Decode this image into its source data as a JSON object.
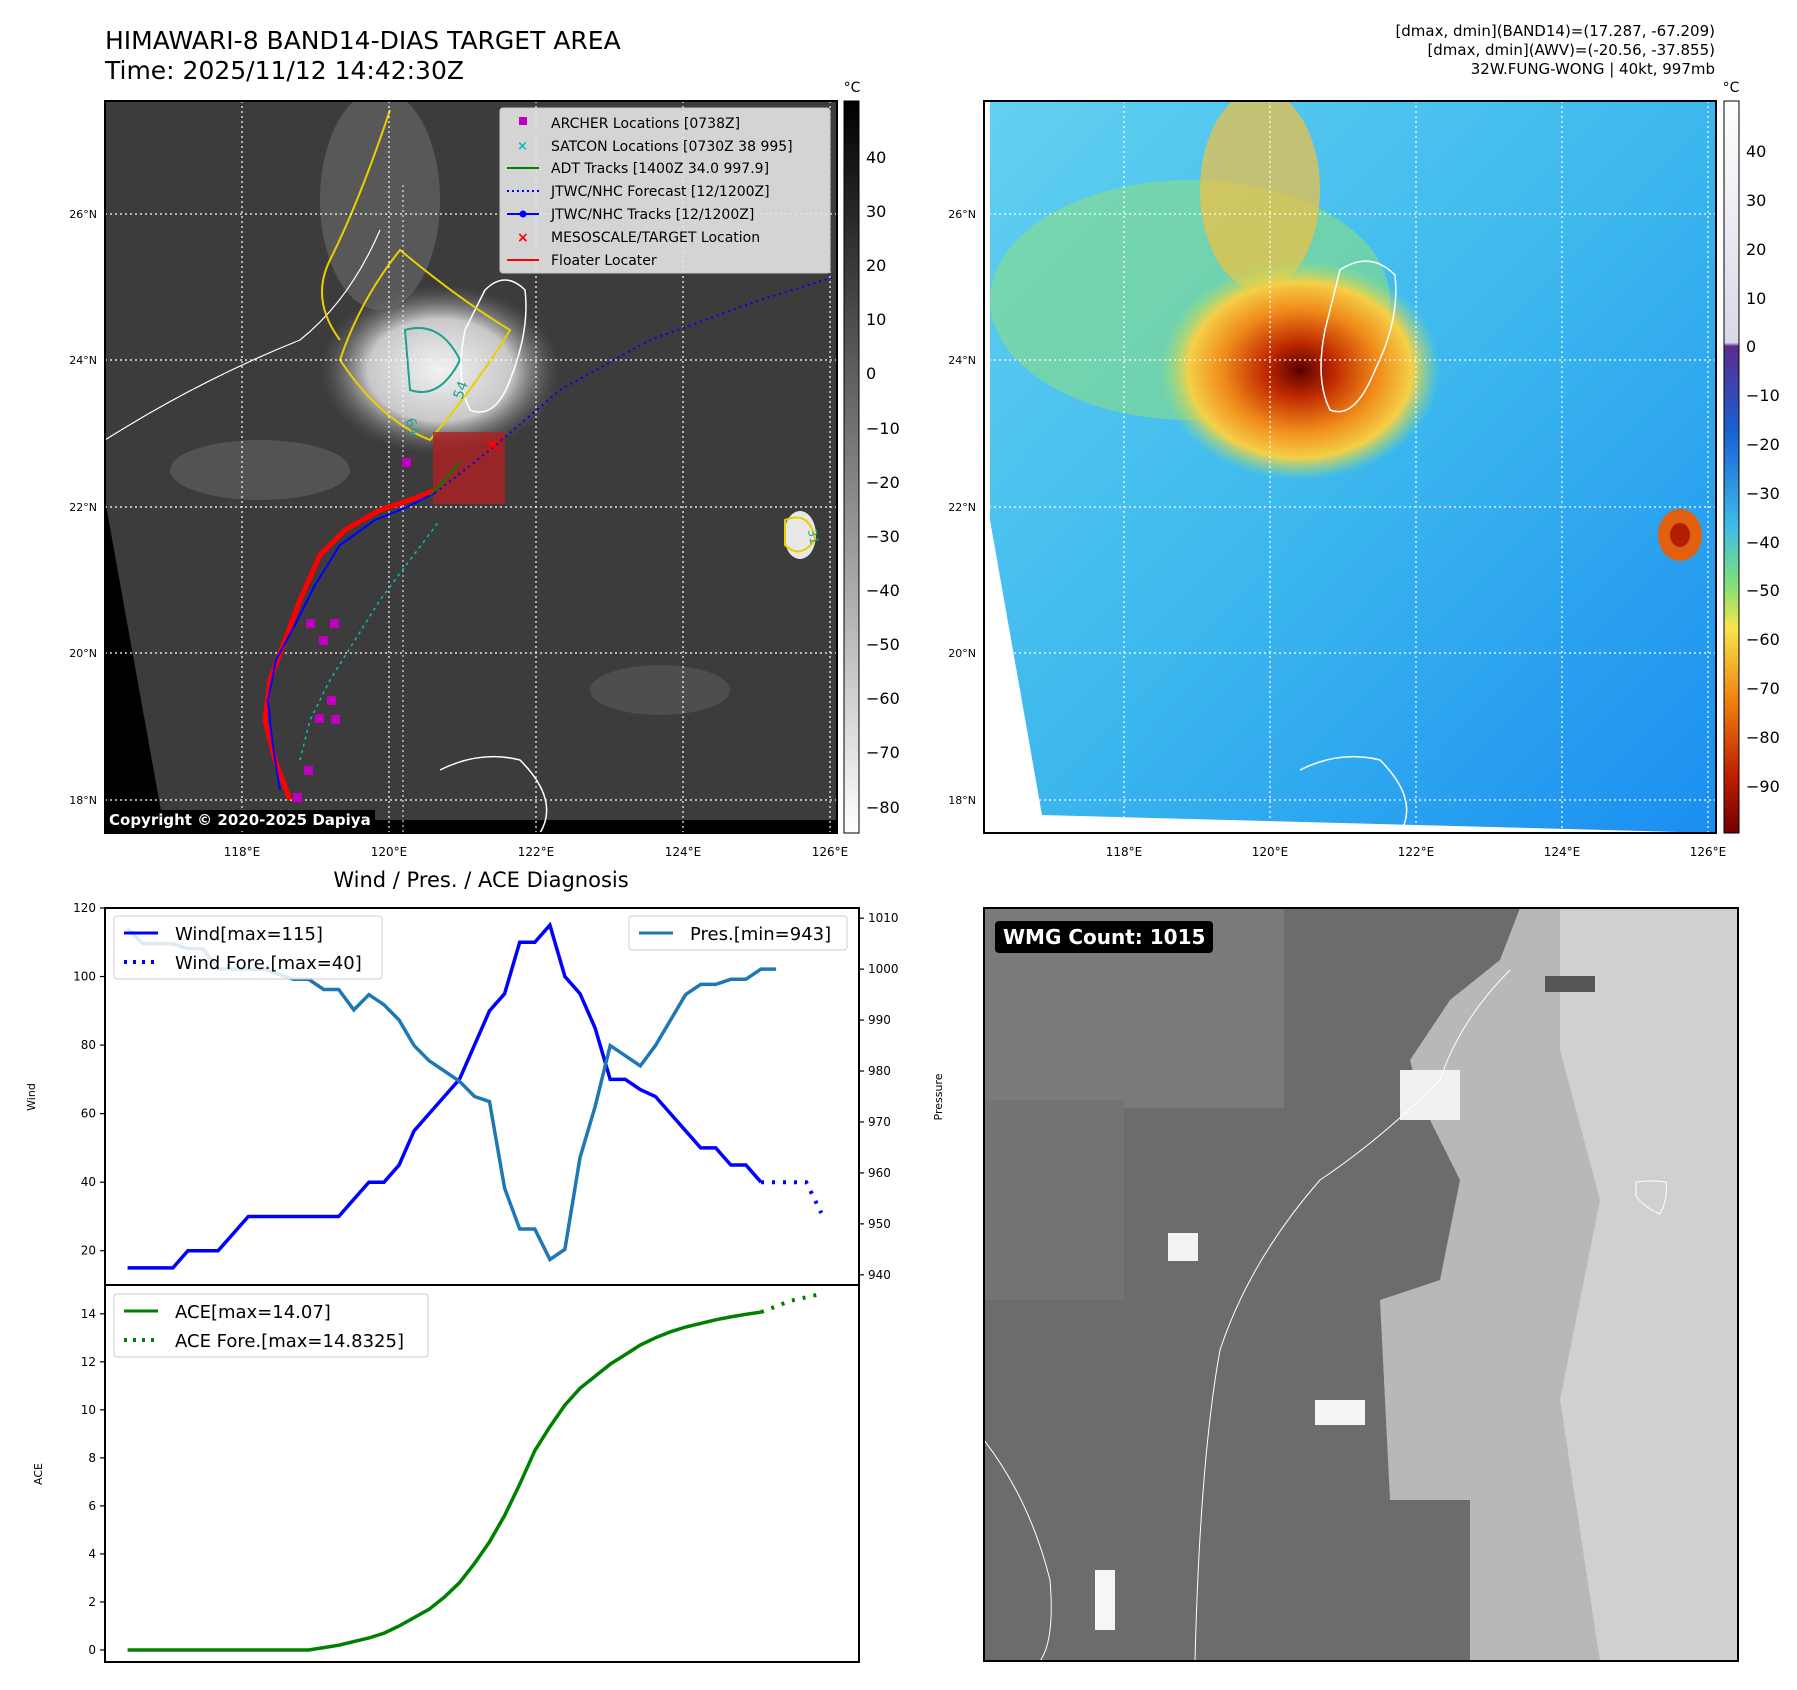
{
  "header": {
    "title_line1": "HIMAWARI-8 BAND14-DIAS TARGET AREA",
    "title_line2": "Time: 2025/11/12 14:42:30Z",
    "info_line1": "[dmax, dmin](BAND14)=(17.287, -67.209)",
    "info_line2": "[dmax, dmin](AWV)=(-20.56, -37.855)",
    "info_line3": "32W.FUNG-WONG | 40kt, 997mb"
  },
  "map": {
    "lat_labels": [
      "26°N",
      "24°N",
      "22°N",
      "20°N",
      "18°N"
    ],
    "lon_labels": [
      "118°E",
      "120°E",
      "122°E",
      "124°E",
      "126°E"
    ],
    "copyright": "Copyright © 2020-2025 Dapiya",
    "legend": [
      {
        "label": "ARCHER Locations [0738Z]",
        "color": "#c000c0",
        "marker": "square"
      },
      {
        "label": "SATCON Locations [0730Z 38 995]",
        "color": "#00c0c0",
        "marker": "x"
      },
      {
        "label": "ADT Tracks [1400Z 34.0 997.9]",
        "color": "#008000",
        "marker": "line"
      },
      {
        "label": "JTWC/NHC Forecast [12/1200Z]",
        "color": "#0000ff",
        "marker": "dotted"
      },
      {
        "label": "JTWC/NHC Tracks [12/1200Z]",
        "color": "#0000ff",
        "marker": "line-dot"
      },
      {
        "label": "MESOSCALE/TARGET Location",
        "color": "#ff0000",
        "marker": "x"
      },
      {
        "label": "Floater Locater",
        "color": "#ff0000",
        "marker": "line"
      }
    ],
    "contour_labels": [
      "54",
      "64",
      "31"
    ],
    "colorbar_gray": {
      "unit": "°C",
      "ticks": [
        "40",
        "30",
        "20",
        "10",
        "0",
        "−10",
        "−20",
        "−30",
        "−40",
        "−50",
        "−60",
        "−70",
        "−80"
      ]
    },
    "colorbar_color": {
      "unit": "°C",
      "ticks": [
        "40",
        "30",
        "20",
        "10",
        "0",
        "−10",
        "−20",
        "−30",
        "−40",
        "−50",
        "−60",
        "−70",
        "−80",
        "−90"
      ]
    },
    "colors": {
      "land": "#ffffff",
      "background": "#3c3c3c",
      "target_box": "#b02020"
    }
  },
  "diag": {
    "title": "Wind / Pres. / ACE Diagnosis",
    "wind_ylabel": "Wind",
    "pres_ylabel": "Pressure",
    "ace_ylabel": "ACE",
    "legend_wind": "Wind[max=115]",
    "legend_wind_fore": "Wind Fore.[max=40]",
    "legend_pres": "Pres.[min=943]",
    "legend_ace": "ACE[max=14.07]",
    "legend_ace_fore": "ACE Fore.[max=14.8325]",
    "wind_ticks": [
      "120",
      "100",
      "80",
      "60",
      "40",
      "20"
    ],
    "pres_ticks": [
      "1010",
      "1000",
      "990",
      "980",
      "970",
      "960",
      "950",
      "940"
    ],
    "ace_ticks": [
      "14",
      "12",
      "10",
      "8",
      "6",
      "4",
      "2",
      "0"
    ]
  },
  "wmg": {
    "label": "WMG Count: 1015"
  },
  "chart_data": [
    {
      "type": "line",
      "title": "Wind / Pres. / ACE Diagnosis",
      "ylabel": "Wind",
      "ylim": [
        10,
        120
      ],
      "series": [
        {
          "name": "Wind[max=115]",
          "color": "#0000ff",
          "x": [
            0,
            1,
            2,
            3,
            4,
            5,
            6,
            7,
            8,
            9,
            10,
            11,
            12,
            13,
            14,
            15,
            16,
            17,
            18,
            19,
            20,
            21,
            22,
            23,
            24,
            25,
            26,
            27,
            28,
            29,
            30,
            31,
            32,
            33,
            34,
            35,
            36,
            37,
            38,
            39,
            40,
            41,
            42,
            43,
            44,
            45,
            46
          ],
          "values": [
            15,
            15,
            15,
            15,
            20,
            20,
            20,
            25,
            30,
            30,
            30,
            30,
            30,
            30,
            30,
            35,
            40,
            40,
            45,
            55,
            60,
            65,
            70,
            80,
            90,
            95,
            110,
            110,
            115,
            100,
            95,
            85,
            70,
            70,
            67,
            65,
            60,
            55,
            50,
            50,
            45,
            45,
            40,
            null,
            null,
            null,
            null
          ]
        },
        {
          "name": "Wind Fore.[max=40]",
          "color": "#0000ff",
          "dashed": true,
          "x": [
            42,
            43,
            44,
            45,
            46
          ],
          "values": [
            40,
            40,
            40,
            40,
            31
          ]
        }
      ]
    },
    {
      "type": "line",
      "ylabel": "Pressure",
      "ylim": [
        938,
        1012
      ],
      "series": [
        {
          "name": "Pres.[min=943]",
          "color": "#1f77b4",
          "x": [
            0,
            1,
            2,
            3,
            4,
            5,
            6,
            7,
            8,
            9,
            10,
            11,
            12,
            13,
            14,
            15,
            16,
            17,
            18,
            19,
            20,
            21,
            22,
            23,
            24,
            25,
            26,
            27,
            28,
            29,
            30,
            31,
            32,
            33,
            34,
            35,
            36,
            37,
            38,
            39,
            40,
            41,
            42,
            43
          ],
          "values": [
            1008,
            1005,
            1005,
            1005,
            1004,
            1004,
            1000,
            1000,
            1000,
            1000,
            999,
            998,
            998,
            996,
            996,
            992,
            995,
            993,
            990,
            985,
            982,
            980,
            978,
            975,
            974,
            957,
            949,
            949,
            943,
            945,
            963,
            973,
            985,
            983,
            981,
            985,
            990,
            995,
            997,
            997,
            998,
            998,
            1000,
            1000
          ]
        }
      ]
    },
    {
      "type": "line",
      "ylabel": "ACE",
      "ylim": [
        -0.5,
        15.2
      ],
      "series": [
        {
          "name": "ACE[max=14.07]",
          "color": "#008000",
          "x": [
            0,
            4,
            8,
            10,
            12,
            13,
            14,
            15,
            16,
            17,
            18,
            19,
            20,
            21,
            22,
            23,
            24,
            25,
            26,
            27,
            28,
            29,
            30,
            31,
            32,
            33,
            34,
            35,
            36,
            37,
            38,
            39,
            40,
            41,
            42
          ],
          "values": [
            0,
            0,
            0,
            0,
            0,
            0.1,
            0.2,
            0.35,
            0.5,
            0.7,
            1.0,
            1.35,
            1.7,
            2.2,
            2.8,
            3.6,
            4.5,
            5.6,
            6.9,
            8.3,
            9.3,
            10.2,
            10.9,
            11.4,
            11.9,
            12.3,
            12.7,
            13.0,
            13.25,
            13.45,
            13.6,
            13.75,
            13.87,
            13.98,
            14.07
          ]
        },
        {
          "name": "ACE Fore.[max=14.8325]",
          "color": "#008000",
          "dashed": true,
          "x": [
            42,
            44,
            46
          ],
          "values": [
            14.07,
            14.55,
            14.83
          ]
        }
      ]
    }
  ]
}
